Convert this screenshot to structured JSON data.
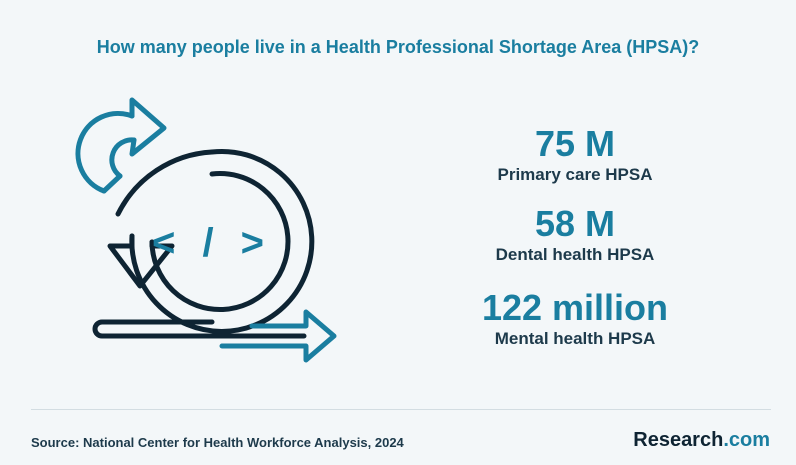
{
  "title": "How many people live in a Health Professional Shortage Area (HPSA)?",
  "stats": [
    {
      "value": "75 M",
      "label": "Primary care HPSA"
    },
    {
      "value": "58 M",
      "label": "Dental health HPSA"
    },
    {
      "value": "122 million",
      "label": "Mental health HPSA"
    }
  ],
  "illustration": {
    "icon": "agile-cycle-code-icon",
    "glyph": "< / >",
    "colors": {
      "dark": "#0e2433",
      "accent": "#1a7ea0",
      "fill": "#ffffff"
    }
  },
  "footer": {
    "source": "Source:  National Center for Health Workforce Analysis, 2024",
    "brand_main": "Research",
    "brand_suffix": ".com"
  }
}
